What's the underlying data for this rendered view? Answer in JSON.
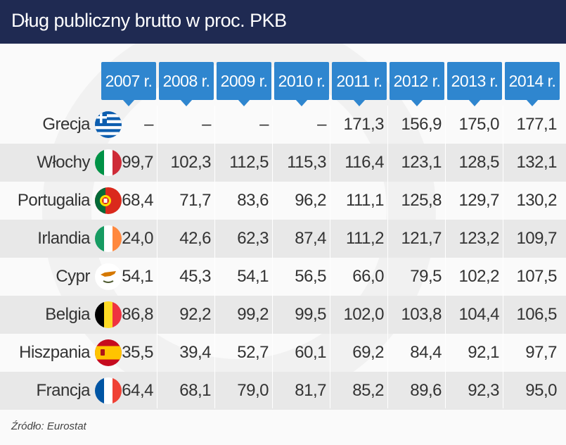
{
  "header": {
    "title": "Dług publiczny brutto w proc. PKB"
  },
  "footer": {
    "source": "Źródło: Eurostat"
  },
  "chart_data": {
    "type": "table",
    "title": "Dług publiczny brutto w proc. PKB",
    "columns": [
      "2007 r.",
      "2008 r.",
      "2009 r.",
      "2010 r.",
      "2011 r.",
      "2012 r.",
      "2013 r.",
      "2014 r."
    ],
    "rows": [
      {
        "country": "Grecja",
        "flag": "greece-flag-icon",
        "values": [
          "–",
          "–",
          "–",
          "–",
          "171,3",
          "156,9",
          "175,0",
          "177,1"
        ]
      },
      {
        "country": "Włochy",
        "flag": "italy-flag-icon",
        "values": [
          "99,7",
          "102,3",
          "112,5",
          "115,3",
          "116,4",
          "123,1",
          "128,5",
          "132,1"
        ]
      },
      {
        "country": "Portugalia",
        "flag": "portugal-flag-icon",
        "values": [
          "68,4",
          "71,7",
          "83,6",
          "96,2",
          "111,1",
          "125,8",
          "129,7",
          "130,2"
        ]
      },
      {
        "country": "Irlandia",
        "flag": "ireland-flag-icon",
        "values": [
          "24,0",
          "42,6",
          "62,3",
          "87,4",
          "111,2",
          "121,7",
          "123,2",
          "109,7"
        ]
      },
      {
        "country": "Cypr",
        "flag": "cyprus-flag-icon",
        "values": [
          "54,1",
          "45,3",
          "54,1",
          "56,5",
          "66,0",
          "79,5",
          "102,2",
          "107,5"
        ]
      },
      {
        "country": "Belgia",
        "flag": "belgium-flag-icon",
        "values": [
          "86,8",
          "92,2",
          "99,2",
          "99,5",
          "102,0",
          "103,8",
          "104,4",
          "106,5"
        ]
      },
      {
        "country": "Hiszpania",
        "flag": "spain-flag-icon",
        "values": [
          "35,5",
          "39,4",
          "52,7",
          "60,1",
          "69,2",
          "84,4",
          "92,1",
          "97,7"
        ]
      },
      {
        "country": "Francja",
        "flag": "france-flag-icon",
        "values": [
          "64,4",
          "68,1",
          "79,0",
          "81,7",
          "85,2",
          "89,6",
          "92,3",
          "95,0"
        ]
      }
    ]
  },
  "colors": {
    "title_bar": "#1f2a52",
    "header_cells": "#2f86cf",
    "band": "#e8e8e8"
  }
}
